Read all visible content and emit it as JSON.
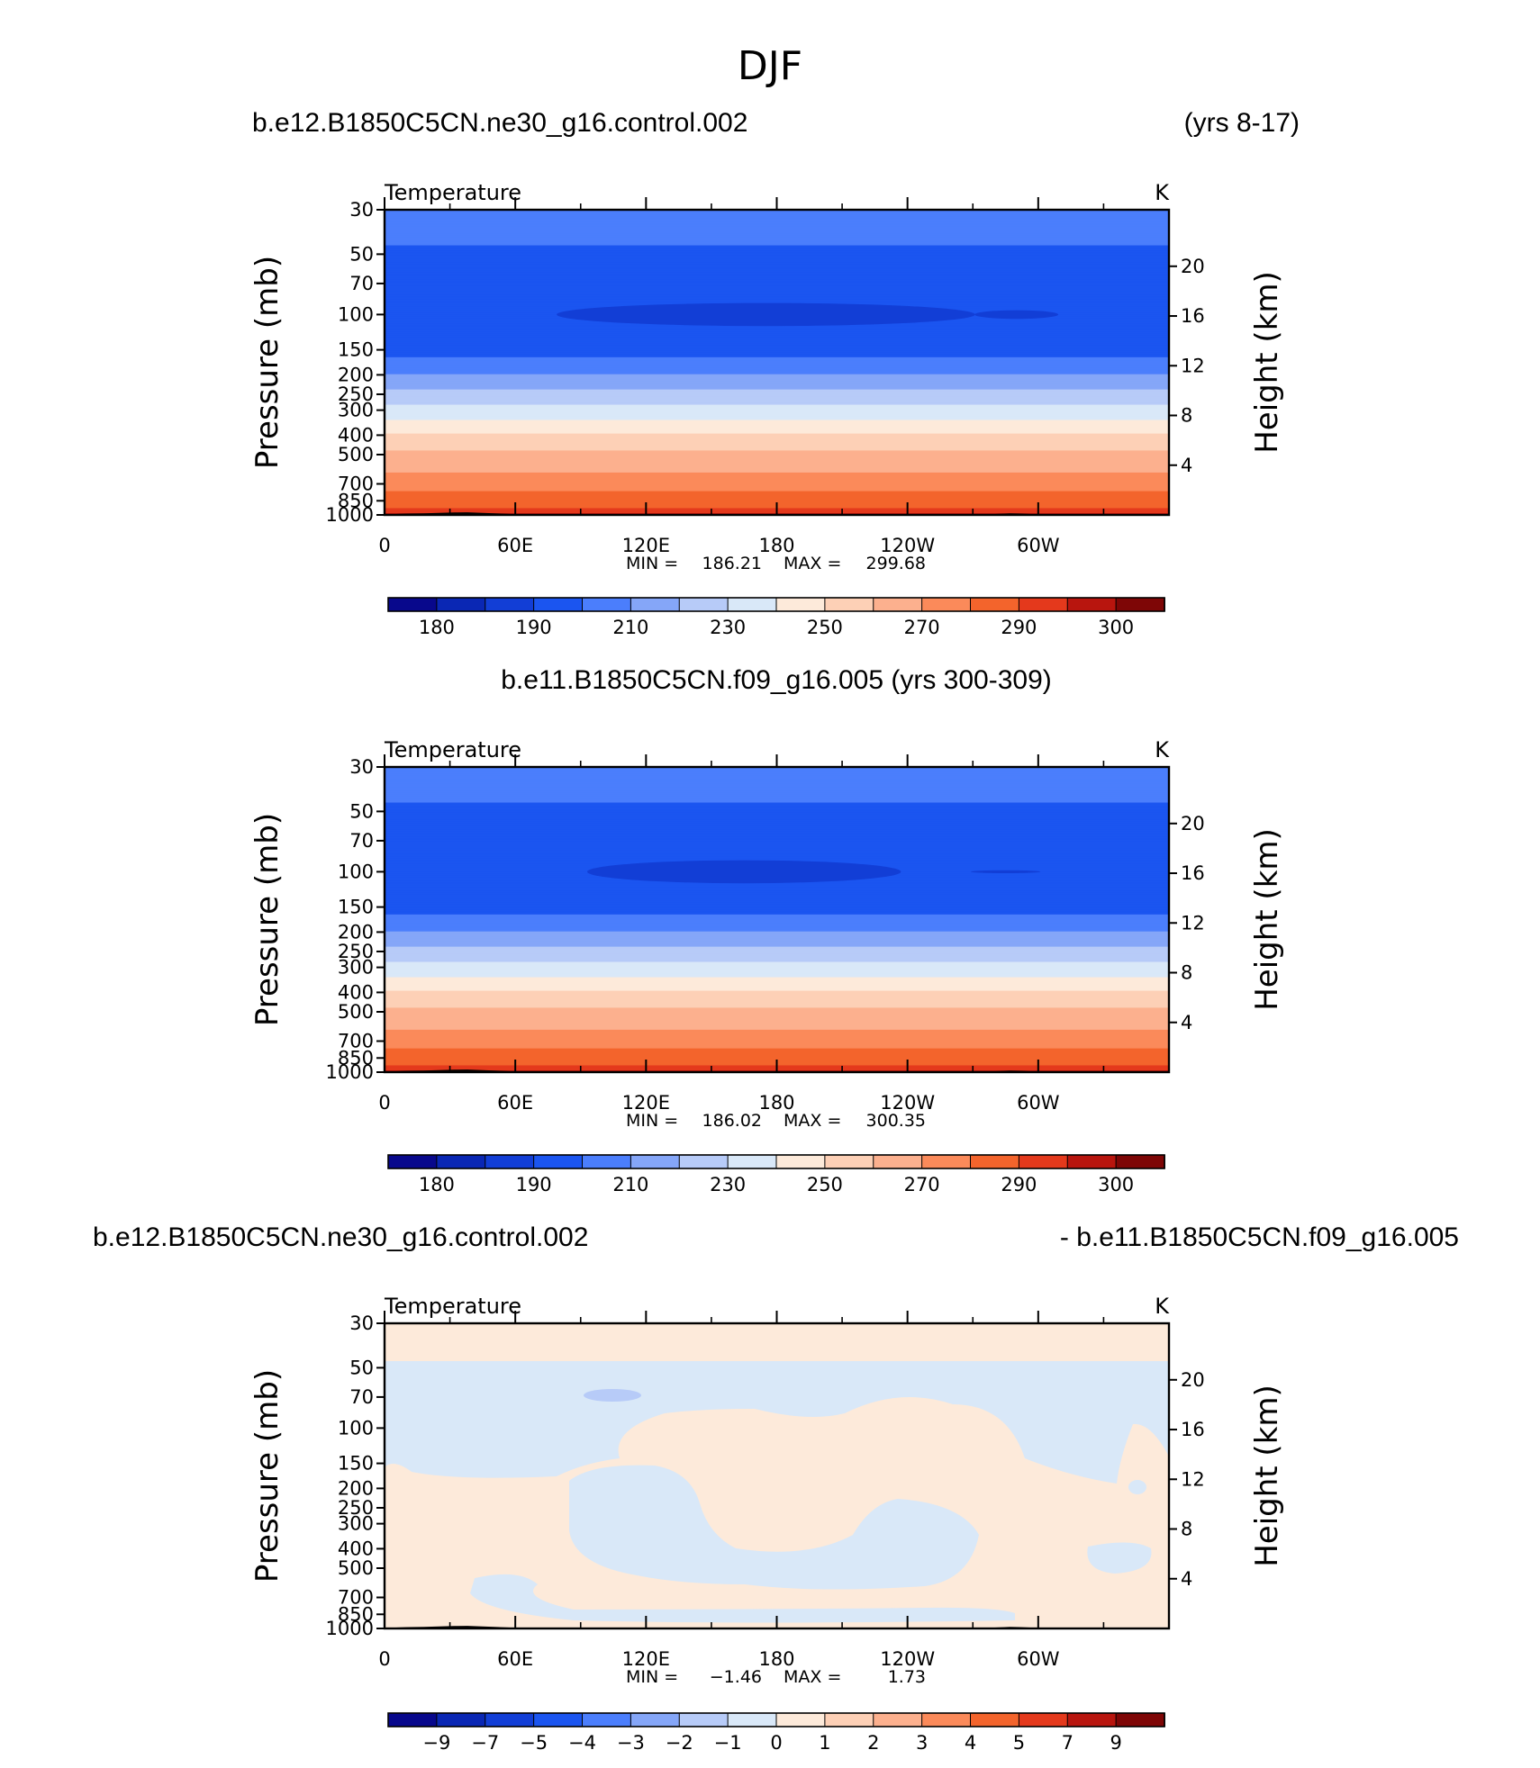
{
  "main_title": "DJF",
  "colors": {
    "temp_levels": [
      "#08088c",
      "#0a27b4",
      "#123ed6",
      "#1b55f0",
      "#4b7efc",
      "#85a6f8",
      "#b7cbf8",
      "#d9e8f8",
      "#fdeada",
      "#fdd0b6",
      "#fcb08e",
      "#fb8a5a",
      "#f3642c",
      "#e4391c",
      "#b8150e",
      "#7e0606"
    ],
    "diff_levels": [
      "#08088c",
      "#0a27b4",
      "#123ed6",
      "#1b55f0",
      "#4b7efc",
      "#85a6f8",
      "#b7cbf8",
      "#d9e8f8",
      "#fdeada",
      "#fdd0b6",
      "#fcb08e",
      "#fb8a5a",
      "#f3642c",
      "#e4391c",
      "#b8150e",
      "#7e0606"
    ],
    "land": "#000000"
  },
  "chart_data": [
    {
      "type": "heatmap",
      "case_left": "b.e12.B1850C5CN.ne30_g16.control.002",
      "case_right": "(yrs 8-17)",
      "variable": "Temperature",
      "units": "K",
      "ylabel": "Pressure  (mb)",
      "ylabel_right": "Height  (km)",
      "pressure_ticks": [
        "30",
        "50",
        "70",
        "100",
        "150",
        "200",
        "250",
        "300",
        "400",
        "500",
        "700",
        "850",
        "1000"
      ],
      "pressure_values": [
        30,
        50,
        70,
        100,
        150,
        200,
        250,
        300,
        400,
        500,
        700,
        850,
        1000
      ],
      "height_ticks": [
        "20",
        "16",
        "12",
        "8",
        "4"
      ],
      "height_values": [
        20,
        16,
        12,
        8,
        4
      ],
      "x_ticks": [
        "0",
        "60E",
        "120E",
        "180",
        "120W",
        "60W"
      ],
      "x_values": [
        0,
        60,
        120,
        180,
        240,
        300
      ],
      "xlim": [
        0,
        360
      ],
      "ylim": [
        1000,
        30
      ],
      "stats": {
        "min_label": "MIN = ",
        "min": "186.21",
        "max_label": "MAX = ",
        "max": "299.68"
      },
      "colorbar_labels": [
        "180",
        "190",
        "210",
        "230",
        "250",
        "270",
        "290",
        "300"
      ],
      "profile": [
        [
          30,
          207
        ],
        [
          40,
          203
        ],
        [
          50,
          197
        ],
        [
          60,
          193
        ],
        [
          70,
          192
        ],
        [
          80,
          191
        ],
        [
          90,
          190
        ],
        [
          100,
          190
        ],
        [
          120,
          191
        ],
        [
          150,
          196
        ],
        [
          175,
          203
        ],
        [
          200,
          211
        ],
        [
          225,
          218
        ],
        [
          250,
          223
        ],
        [
          275,
          229
        ],
        [
          300,
          234
        ],
        [
          350,
          243
        ],
        [
          400,
          252
        ],
        [
          450,
          257
        ],
        [
          500,
          262
        ],
        [
          600,
          269
        ],
        [
          700,
          276
        ],
        [
          800,
          282
        ],
        [
          850,
          285
        ],
        [
          925,
          290
        ],
        [
          1000,
          296
        ]
      ],
      "cold_patches": [
        {
          "lon": 175,
          "p": 100,
          "dlon": 60,
          "dp": 8
        },
        {
          "lon": 290,
          "p": 100,
          "dlon": 12,
          "dp": 3
        }
      ]
    },
    {
      "type": "heatmap",
      "case_center": "b.e11.B1850C5CN.f09_g16.005 (yrs 300-309)",
      "variable": "Temperature",
      "units": "K",
      "ylabel": "Pressure  (mb)",
      "ylabel_right": "Height  (km)",
      "pressure_ticks": [
        "30",
        "50",
        "70",
        "100",
        "150",
        "200",
        "250",
        "300",
        "400",
        "500",
        "700",
        "850",
        "1000"
      ],
      "pressure_values": [
        30,
        50,
        70,
        100,
        150,
        200,
        250,
        300,
        400,
        500,
        700,
        850,
        1000
      ],
      "height_ticks": [
        "20",
        "16",
        "12",
        "8",
        "4"
      ],
      "height_values": [
        20,
        16,
        12,
        8,
        4
      ],
      "x_ticks": [
        "0",
        "60E",
        "120E",
        "180",
        "120W",
        "60W"
      ],
      "x_values": [
        0,
        60,
        120,
        180,
        240,
        300
      ],
      "xlim": [
        0,
        360
      ],
      "ylim": [
        1000,
        30
      ],
      "stats": {
        "min_label": "MIN = ",
        "min": "186.02",
        "max_label": "MAX = ",
        "max": "300.35"
      },
      "colorbar_labels": [
        "180",
        "190",
        "210",
        "230",
        "250",
        "270",
        "290",
        "300"
      ],
      "profile": [
        [
          30,
          208
        ],
        [
          40,
          203
        ],
        [
          50,
          197
        ],
        [
          60,
          193
        ],
        [
          70,
          192
        ],
        [
          80,
          191
        ],
        [
          90,
          190
        ],
        [
          100,
          190
        ],
        [
          120,
          191
        ],
        [
          150,
          196
        ],
        [
          175,
          203
        ],
        [
          200,
          211
        ],
        [
          225,
          218
        ],
        [
          250,
          223
        ],
        [
          275,
          229
        ],
        [
          300,
          234
        ],
        [
          350,
          243
        ],
        [
          400,
          252
        ],
        [
          450,
          257
        ],
        [
          500,
          262
        ],
        [
          600,
          269
        ],
        [
          700,
          276
        ],
        [
          800,
          282
        ],
        [
          850,
          285
        ],
        [
          925,
          290
        ],
        [
          1000,
          296
        ]
      ],
      "cold_patches": [
        {
          "lon": 165,
          "p": 100,
          "dlon": 45,
          "dp": 8
        },
        {
          "lon": 285,
          "p": 100,
          "dlon": 10,
          "dp": 1
        }
      ]
    },
    {
      "type": "heatmap",
      "case_left": "b.e12.B1850C5CN.ne30_g16.control.002",
      "case_right": "- b.e11.B1850C5CN.f09_g16.005",
      "variable": "Temperature",
      "units": "K",
      "ylabel": "Pressure  (mb)",
      "ylabel_right": "Height  (km)",
      "pressure_ticks": [
        "30",
        "50",
        "70",
        "100",
        "150",
        "200",
        "250",
        "300",
        "400",
        "500",
        "700",
        "850",
        "1000"
      ],
      "pressure_values": [
        30,
        50,
        70,
        100,
        150,
        200,
        250,
        300,
        400,
        500,
        700,
        850,
        1000
      ],
      "height_ticks": [
        "20",
        "16",
        "12",
        "8",
        "4"
      ],
      "height_values": [
        20,
        16,
        12,
        8,
        4
      ],
      "x_ticks": [
        "0",
        "60E",
        "120E",
        "180",
        "120W",
        "60W"
      ],
      "x_values": [
        0,
        60,
        120,
        180,
        240,
        300
      ],
      "xlim": [
        0,
        360
      ],
      "ylim": [
        1000,
        30
      ],
      "stats": {
        "min_label": "MIN = ",
        "min": "−1.46",
        "max_label": "MAX = ",
        "max": "1.73"
      },
      "colorbar_labels": [
        "−9",
        "−7",
        "−5",
        "−4",
        "−3",
        "−2",
        "−1",
        "0",
        "1",
        "2",
        "3",
        "4",
        "5",
        "7",
        "9"
      ],
      "diff_levels_values": [
        -9,
        -7,
        -5,
        -4,
        -3,
        -2,
        -1,
        0,
        1,
        2,
        3,
        4,
        5,
        7,
        9
      ]
    }
  ]
}
